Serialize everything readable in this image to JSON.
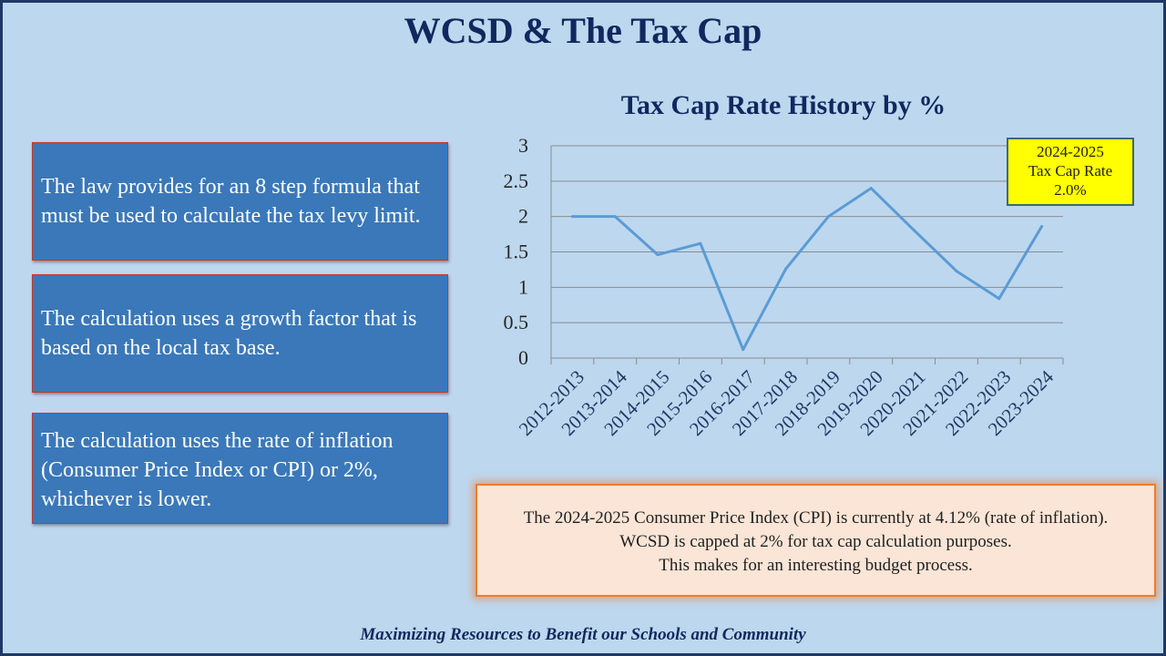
{
  "slide": {
    "title": "WCSD & The Tax Cap",
    "footer": "Maximizing Resources to Benefit our Schools and Community"
  },
  "info_boxes": [
    "The law provides for an 8 step formula that must be used to calculate the tax levy limit.",
    "The calculation uses a growth factor that is based on the local tax base.",
    "The calculation uses the rate of inflation (Consumer Price Index or CPI) or 2%, whichever is lower."
  ],
  "rate_callout": {
    "line1": "2024-2025",
    "line2": "Tax Cap Rate",
    "line3": "2.0%"
  },
  "cpi_note": {
    "line1": "The 2024-2025 Consumer Price Index (CPI) is currently at 4.12% (rate of inflation).",
    "line2": "WCSD is capped at 2% for tax cap calculation purposes.",
    "line3": "This makes for an interesting budget process."
  },
  "colors": {
    "background": "#bdd7ee",
    "line": "#5b9bd5",
    "box_fill": "#3a78b9",
    "title": "#10285e",
    "callout": "#ffff00",
    "cpi_fill": "#fbe5d6",
    "cpi_border": "#ed7d31"
  },
  "chart_data": {
    "type": "line",
    "title": "Tax Cap Rate History by %",
    "xlabel": "",
    "ylabel": "",
    "categories": [
      "2012-2013",
      "2013-2014",
      "2014-2015",
      "2015-2016",
      "2016-2017",
      "2017-2018",
      "2018-2019",
      "2019-2020",
      "2020-2021",
      "2021-2022",
      "2022-2023",
      "2023-2024"
    ],
    "series": [
      {
        "values": [
          2,
          2,
          1.46,
          1.62,
          0.12,
          1.26,
          2,
          2.4,
          1.81,
          1.23,
          0.84,
          1.86
        ]
      }
    ],
    "ylim": [
      0,
      3
    ],
    "yticks": [
      0,
      0.5,
      1,
      1.5,
      2,
      2.5,
      3
    ],
    "grid": true,
    "legend": "none"
  }
}
